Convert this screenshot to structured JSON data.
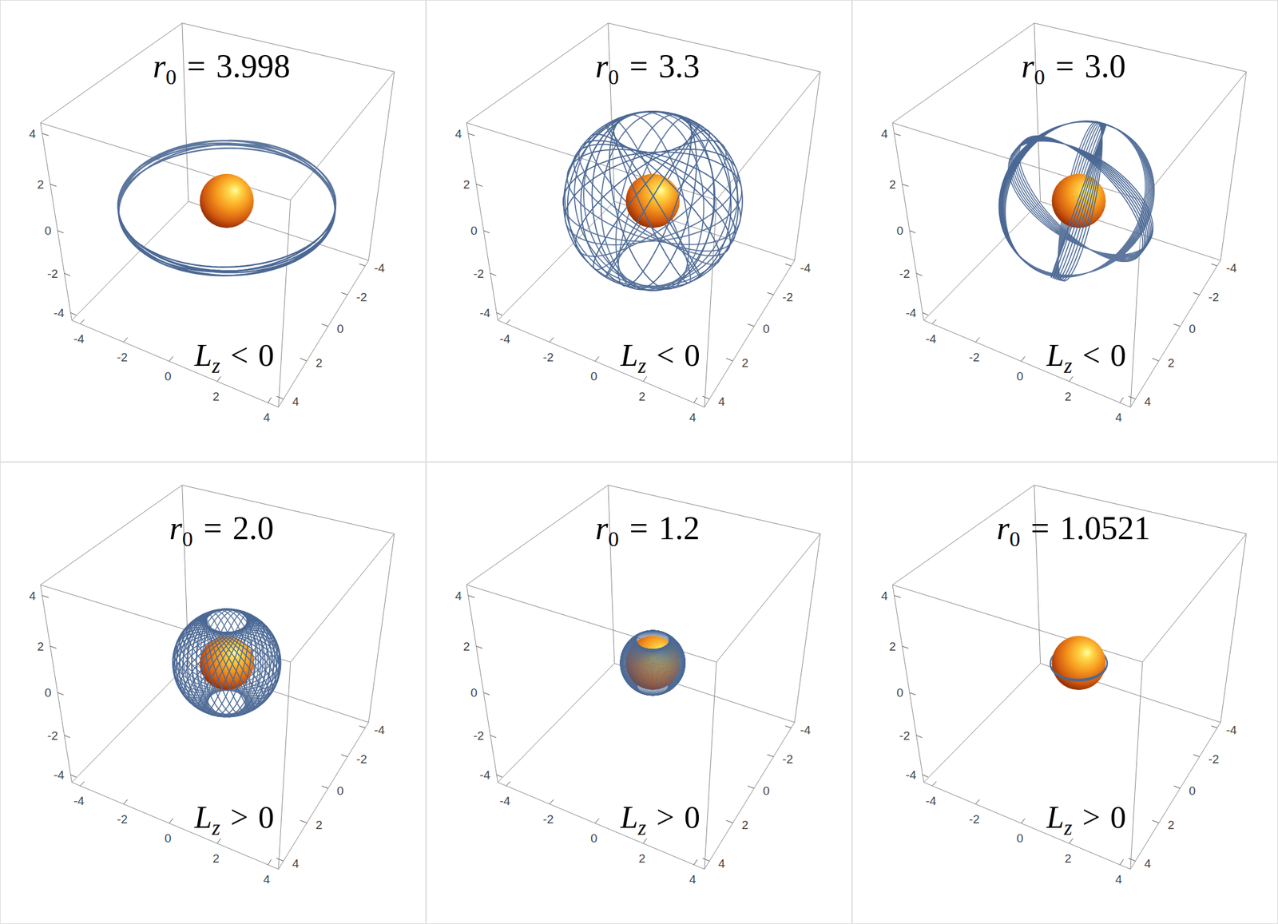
{
  "chart_data": [
    {
      "type": "orbit3d",
      "title": {
        "symbol": "r",
        "subscript": "0",
        "relation": "=",
        "value": 3.998
      },
      "annotation": {
        "symbol": "L",
        "subscript": "z",
        "relation": "<",
        "value": 0
      },
      "color": "#4b6894",
      "body_radius": 1,
      "xlim": [
        -4.4,
        4.4
      ],
      "ylim": [
        -4.4,
        4.4
      ],
      "zlim": [
        -4.4,
        4.4
      ],
      "xticks": [
        -4,
        -2,
        0,
        2,
        4
      ],
      "yticks": [
        -4,
        -2,
        0,
        2,
        4
      ],
      "zticks": [
        -4,
        -2,
        0,
        2,
        4
      ]
    },
    {
      "type": "orbit3d",
      "title": {
        "symbol": "r",
        "subscript": "0",
        "relation": "=",
        "value": 3.3
      },
      "annotation": {
        "symbol": "L",
        "subscript": "z",
        "relation": "<",
        "value": 0
      },
      "color": "#4b6894",
      "body_radius": 1,
      "xlim": [
        -4.4,
        4.4
      ],
      "ylim": [
        -4.4,
        4.4
      ],
      "zlim": [
        -4.4,
        4.4
      ],
      "xticks": [
        -4,
        -2,
        0,
        2,
        4
      ],
      "yticks": [
        -4,
        -2,
        0,
        2,
        4
      ],
      "zticks": [
        -4,
        -2,
        0,
        2,
        4
      ]
    },
    {
      "type": "orbit3d",
      "title": {
        "symbol": "r",
        "subscript": "0",
        "relation": "=",
        "value": 3.0,
        "label": "3.0"
      },
      "annotation": {
        "symbol": "L",
        "subscript": "z",
        "relation": "<",
        "value": 0
      },
      "color": "#4b6894",
      "body_radius": 1,
      "xlim": [
        -4.4,
        4.4
      ],
      "ylim": [
        -4.4,
        4.4
      ],
      "zlim": [
        -4.4,
        4.4
      ],
      "xticks": [
        -4,
        -2,
        0,
        2,
        4
      ],
      "yticks": [
        -4,
        -2,
        0,
        2,
        4
      ],
      "zticks": [
        -4,
        -2,
        0,
        2,
        4
      ]
    },
    {
      "type": "orbit3d",
      "title": {
        "symbol": "r",
        "subscript": "0",
        "relation": "=",
        "value": 2.0,
        "label": "2.0"
      },
      "annotation": {
        "symbol": "L",
        "subscript": "z",
        "relation": ">",
        "value": 0
      },
      "color": "#4b6894",
      "body_radius": 1,
      "xlim": [
        -4.4,
        4.4
      ],
      "ylim": [
        -4.4,
        4.4
      ],
      "zlim": [
        -4.4,
        4.4
      ],
      "xticks": [
        -4,
        -2,
        0,
        2,
        4
      ],
      "yticks": [
        -4,
        -2,
        0,
        2,
        4
      ],
      "zticks": [
        -4,
        -2,
        0,
        2,
        4
      ]
    },
    {
      "type": "orbit3d",
      "title": {
        "symbol": "r",
        "subscript": "0",
        "relation": "=",
        "value": 1.2
      },
      "annotation": {
        "symbol": "L",
        "subscript": "z",
        "relation": ">",
        "value": 0
      },
      "color": "#4b6894",
      "body_radius": 1,
      "xlim": [
        -4.4,
        4.4
      ],
      "ylim": [
        -4.4,
        4.4
      ],
      "zlim": [
        -4.4,
        4.4
      ],
      "xticks": [
        -4,
        -2,
        0,
        2,
        4
      ],
      "yticks": [
        -4,
        -2,
        0,
        2,
        4
      ],
      "zticks": [
        -4,
        -2,
        0,
        2,
        4
      ]
    },
    {
      "type": "orbit3d",
      "title": {
        "symbol": "r",
        "subscript": "0",
        "relation": "=",
        "value": 1.0521
      },
      "annotation": {
        "symbol": "L",
        "subscript": "z",
        "relation": ">",
        "value": 0
      },
      "color": "#4b6894",
      "body_radius": 1,
      "xlim": [
        -4.4,
        4.4
      ],
      "ylim": [
        -4.4,
        4.4
      ],
      "zlim": [
        -4.4,
        4.4
      ],
      "xticks": [
        -4,
        -2,
        0,
        2,
        4
      ],
      "yticks": [
        -4,
        -2,
        0,
        2,
        4
      ],
      "zticks": [
        -4,
        -2,
        0,
        2,
        4
      ]
    }
  ]
}
